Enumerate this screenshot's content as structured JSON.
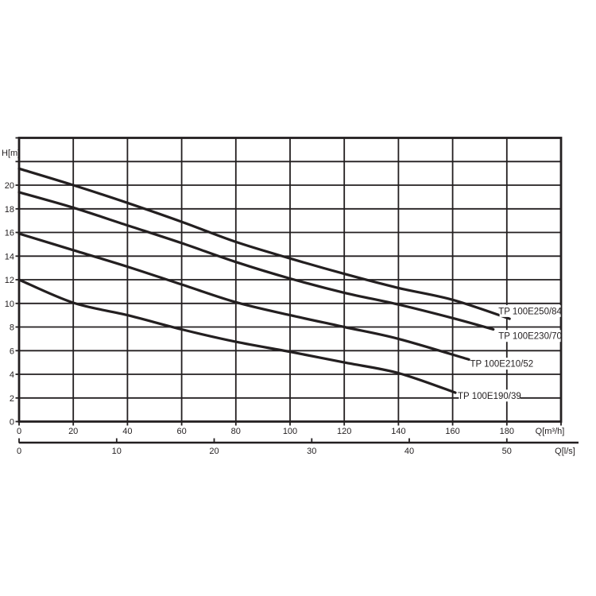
{
  "chart_data": {
    "type": "line",
    "title": "",
    "xlabel": "Q[m³/h]",
    "ylabel": "H[m]",
    "xlim": [
      0,
      200
    ],
    "ylim": [
      0,
      24
    ],
    "x_grid_step": 20,
    "y_grid_step": 2,
    "x_tick_labels": [
      0,
      20,
      40,
      60,
      80,
      100,
      120,
      140,
      160,
      180
    ],
    "y_tick_labels": [
      0,
      2,
      4,
      6,
      8,
      10,
      12,
      14,
      16,
      18,
      20
    ],
    "grid": true,
    "line_color": "#231f20",
    "background_color": "#ffffff",
    "legend_position": "inline-labels",
    "series": [
      {
        "name": "TP 100E250/84",
        "points": [
          [
            0,
            21.4
          ],
          [
            20,
            20.0
          ],
          [
            40,
            18.5
          ],
          [
            60,
            16.9
          ],
          [
            80,
            15.2
          ],
          [
            100,
            13.8
          ],
          [
            120,
            12.5
          ],
          [
            140,
            11.3
          ],
          [
            160,
            10.3
          ],
          [
            181,
            8.7
          ]
        ],
        "label_anchor": {
          "x": 177.3,
          "y": 9.35
        }
      },
      {
        "name": "TP 100E230/70",
        "points": [
          [
            0,
            19.4
          ],
          [
            20,
            18.1
          ],
          [
            40,
            16.6
          ],
          [
            60,
            15.1
          ],
          [
            80,
            13.5
          ],
          [
            100,
            12.1
          ],
          [
            120,
            10.9
          ],
          [
            140,
            9.9
          ],
          [
            160,
            8.75
          ],
          [
            175,
            7.8
          ]
        ],
        "label_anchor": {
          "x": 177.3,
          "y": 7.25
        }
      },
      {
        "name": "TP 100E210/52",
        "points": [
          [
            0,
            15.9
          ],
          [
            20,
            14.5
          ],
          [
            40,
            13.1
          ],
          [
            60,
            11.6
          ],
          [
            80,
            10.1
          ],
          [
            100,
            9.0
          ],
          [
            120,
            8.0
          ],
          [
            140,
            7.0
          ],
          [
            166,
            5.25
          ]
        ],
        "label_anchor": {
          "x": 166.8,
          "y": 4.9
        }
      },
      {
        "name": "TP 100E190/39",
        "points": [
          [
            0,
            12.0
          ],
          [
            20,
            10.05
          ],
          [
            40,
            9.0
          ],
          [
            60,
            7.8
          ],
          [
            80,
            6.75
          ],
          [
            100,
            5.9
          ],
          [
            120,
            5.0
          ],
          [
            140,
            4.1
          ],
          [
            161,
            2.45
          ]
        ],
        "label_anchor": {
          "x": 162.3,
          "y": 2.2
        }
      }
    ],
    "secondary_axis": {
      "label": "Q[l/s]",
      "tick_values": [
        0,
        10,
        20,
        30,
        40,
        50
      ],
      "primary_units_per_unit": 3.6
    }
  }
}
